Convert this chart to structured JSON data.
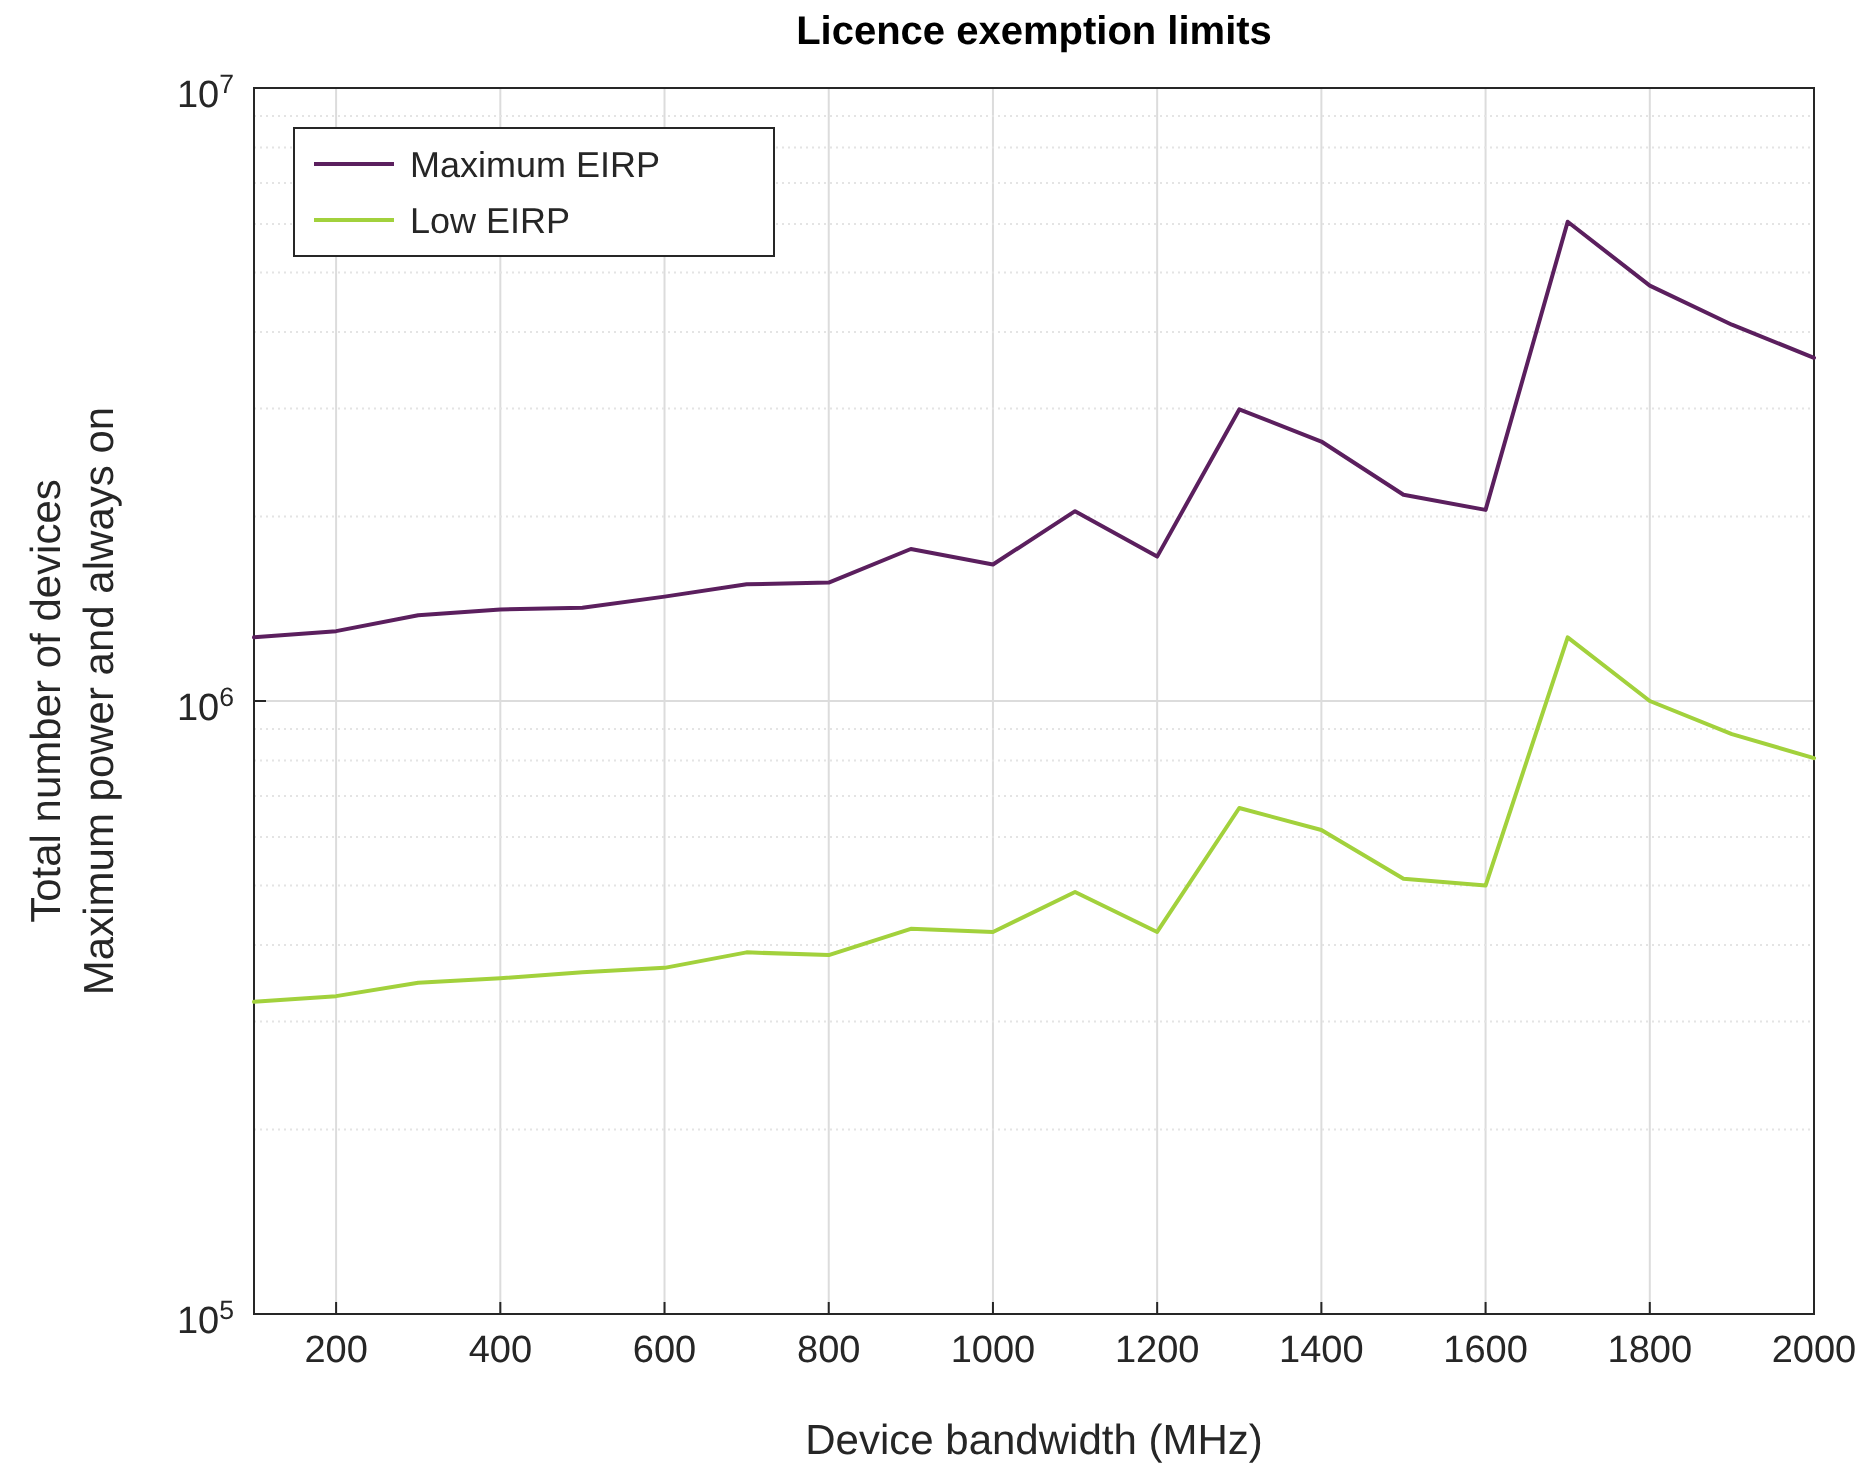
{
  "chart_data": {
    "type": "line",
    "title": "Licence exemption limits",
    "xlabel": "Device bandwidth (MHz)",
    "ylabel": "Total number of devices\nMaximum power and always on",
    "x": [
      100,
      200,
      300,
      400,
      500,
      600,
      700,
      800,
      900,
      1000,
      1100,
      1200,
      1300,
      1400,
      1500,
      1600,
      1700,
      1800,
      1900,
      2000
    ],
    "series": [
      {
        "name": "Maximum EIRP",
        "color": "#5b1f5e",
        "values": [
          1270000,
          1300000,
          1380000,
          1410000,
          1420000,
          1480000,
          1550000,
          1560000,
          1770000,
          1670000,
          2040000,
          1720000,
          2990000,
          2650000,
          2170000,
          2050000,
          6050000,
          4760000,
          4110000,
          3630000
        ]
      },
      {
        "name": "Low EIRP",
        "color": "#a2d13c",
        "values": [
          323000,
          330000,
          347000,
          353000,
          361000,
          367000,
          389000,
          385000,
          425000,
          420000,
          488000,
          420000,
          669000,
          616000,
          513000,
          500000,
          1270000,
          1000000,
          883000,
          807000
        ]
      }
    ],
    "xlim": [
      100,
      2000
    ],
    "xticks": [
      200,
      400,
      600,
      800,
      1000,
      1200,
      1400,
      1600,
      1800,
      2000
    ],
    "ylim": [
      100000,
      10000000
    ],
    "yticks": [
      {
        "value": 100000,
        "label": "10$^{5}$"
      },
      {
        "value": 1000000,
        "label": "10$^{6}$"
      },
      {
        "value": 10000000,
        "label": "10$^{7}$"
      }
    ],
    "log": "y",
    "grid": true,
    "legend": "top left",
    "marker": "none",
    "line_style": "solid"
  }
}
